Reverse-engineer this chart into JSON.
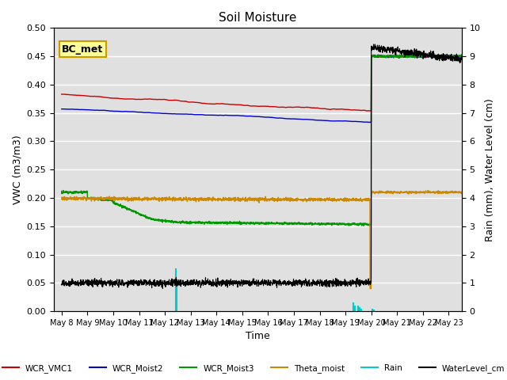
{
  "title": "Soil Moisture",
  "ylabel_left": "VWC (m3/m3)",
  "ylabel_right": "Rain (mm), Water Level (cm)",
  "xlabel": "Time",
  "ylim_left": [
    0.0,
    0.5
  ],
  "ylim_right": [
    0.0,
    10.0
  ],
  "yticks_left": [
    0.0,
    0.05,
    0.1,
    0.15,
    0.2,
    0.25,
    0.3,
    0.35,
    0.4,
    0.45,
    0.5
  ],
  "yticks_right": [
    0.0,
    1.0,
    2.0,
    3.0,
    4.0,
    5.0,
    6.0,
    7.0,
    8.0,
    9.0,
    10.0
  ],
  "bg_color": "#e0e0e0",
  "grid_color": "white",
  "annotation_text": "BC_met",
  "annotation_box_color": "#ffff99",
  "annotation_box_edge": "#cc9900",
  "legend_entries": [
    "WCR_VMC1",
    "WCR_Moist2",
    "WCR_Moist3",
    "Theta_moist",
    "Rain",
    "WaterLevel_cm"
  ],
  "legend_colors": [
    "#cc0000",
    "#0000cc",
    "#009900",
    "#cc8800",
    "#00cccc",
    "#000000"
  ],
  "n_days": 16,
  "day_event": 12.0,
  "steps_per_day": 144
}
